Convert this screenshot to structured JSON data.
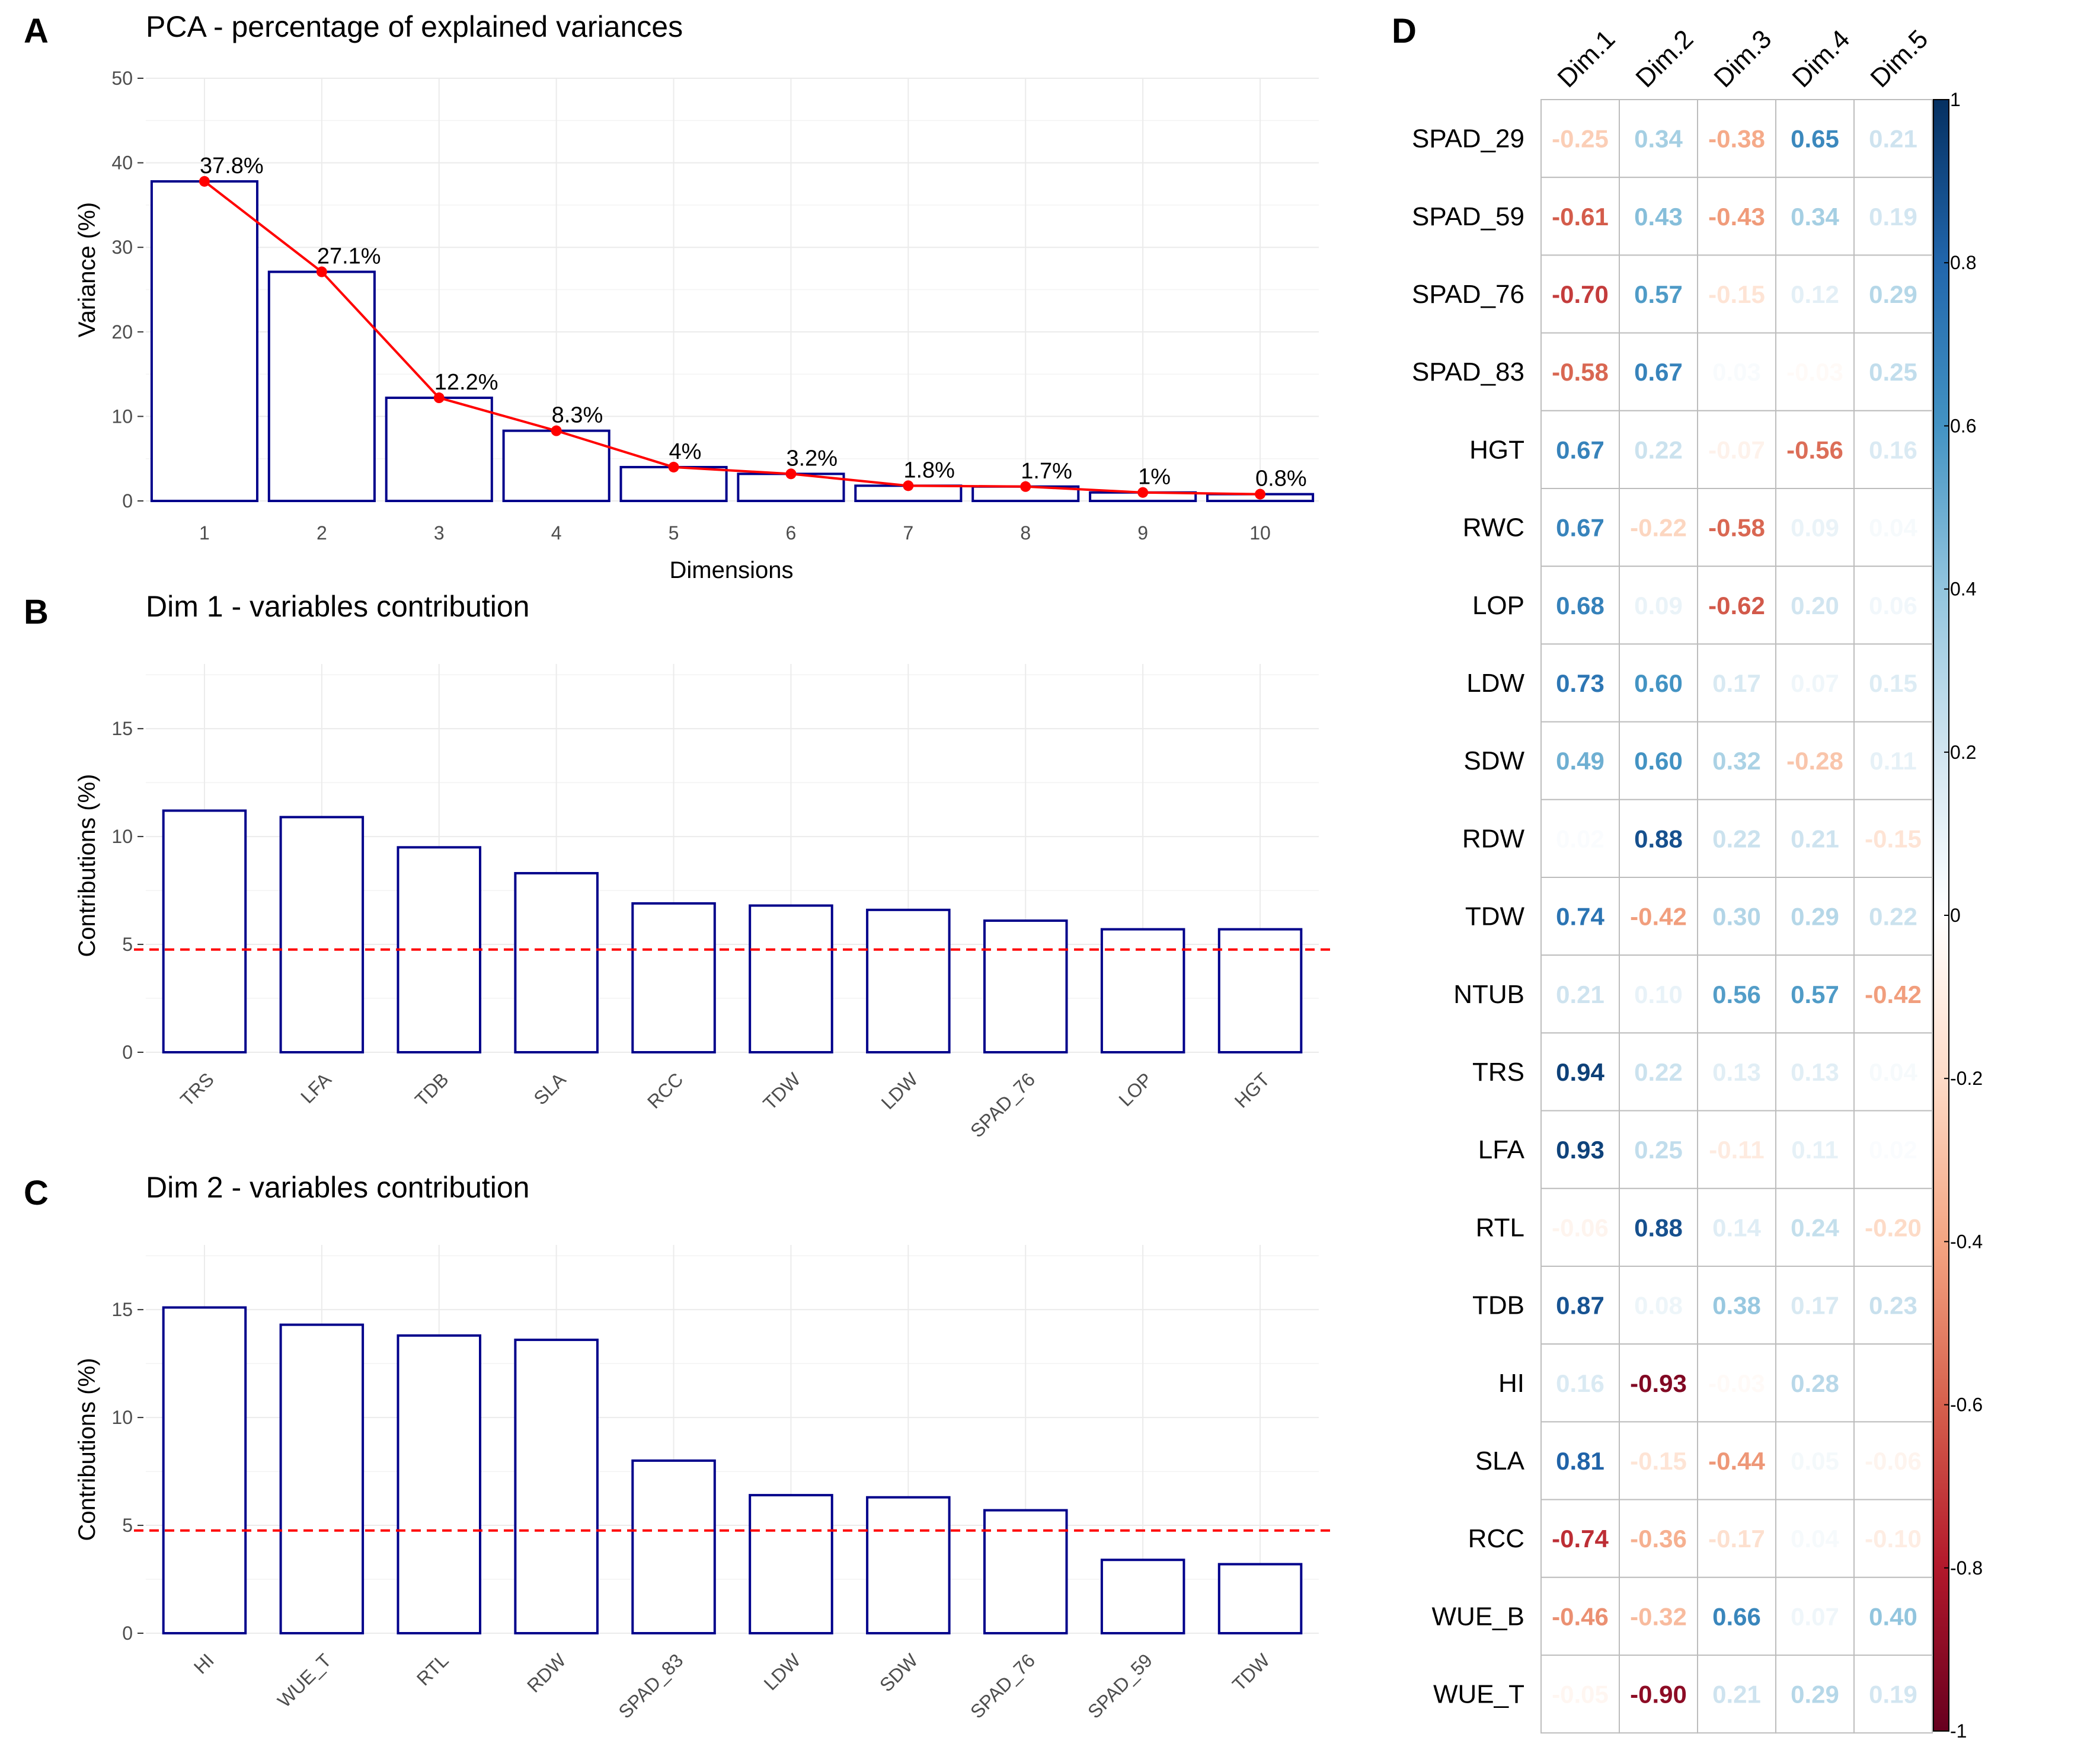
{
  "panels": {
    "A": {
      "letter": "A",
      "title": "PCA - percentage of explained variances",
      "xlabel": "Dimensions",
      "ylabel": "Variance (%)"
    },
    "B": {
      "letter": "B",
      "title": "Dim 1 - variables contribution",
      "ylabel": "Contributions (%)"
    },
    "C": {
      "letter": "C",
      "title": "Dim 2 - variables contribution",
      "ylabel": "Contributions (%)"
    },
    "D": {
      "letter": "D"
    }
  },
  "colors": {
    "bar_stroke": "#00008b",
    "line": "#ff0000",
    "refline": "#ff0000",
    "positive": "#053061",
    "negative": "#67001f"
  },
  "chart_data": [
    {
      "panel": "A",
      "type": "bar",
      "title": "PCA - percentage of explained variances",
      "xlabel": "Dimensions",
      "ylabel": "Variance (%)",
      "categories": [
        "1",
        "2",
        "3",
        "4",
        "5",
        "6",
        "7",
        "8",
        "9",
        "10"
      ],
      "values": [
        37.8,
        27.1,
        12.2,
        8.3,
        4.0,
        3.2,
        1.8,
        1.7,
        1.0,
        0.8
      ],
      "data_labels": [
        "37.8%",
        "27.1%",
        "12.2%",
        "8.3%",
        "4%",
        "3.2%",
        "1.8%",
        "1.7%",
        "1%",
        "0.8%"
      ],
      "line_overlay": true,
      "ylim": [
        0,
        50
      ],
      "yticks": [
        0,
        10,
        20,
        30,
        40,
        50
      ],
      "grid": true
    },
    {
      "panel": "B",
      "type": "bar",
      "title": "Dim 1 - variables contribution",
      "ylabel": "Contributions (%)",
      "categories": [
        "TRS",
        "LFA",
        "TDB",
        "SLA",
        "RCC",
        "TDW",
        "LDW",
        "SPAD_76",
        "LOP",
        "HGT"
      ],
      "values": [
        11.2,
        10.9,
        9.5,
        8.3,
        6.9,
        6.8,
        6.6,
        6.1,
        5.7,
        5.7
      ],
      "reference_line": 4.76,
      "ylim": [
        0,
        18
      ],
      "yticks": [
        0,
        5,
        10,
        15
      ],
      "grid": true
    },
    {
      "panel": "C",
      "type": "bar",
      "title": "Dim 2 - variables contribution",
      "ylabel": "Contributions (%)",
      "categories": [
        "HI",
        "WUE_T",
        "RTL",
        "RDW",
        "SPAD_83",
        "LDW",
        "SDW",
        "SPAD_76",
        "SPAD_59",
        "TDW"
      ],
      "values": [
        15.1,
        14.3,
        13.8,
        13.6,
        8.0,
        6.4,
        6.3,
        5.7,
        3.4,
        3.2
      ],
      "reference_line": 4.76,
      "ylim": [
        0,
        18
      ],
      "yticks": [
        0,
        5,
        10,
        15
      ],
      "grid": true
    },
    {
      "panel": "D",
      "type": "heatmap",
      "columns": [
        "Dim.1",
        "Dim.2",
        "Dim.3",
        "Dim.4",
        "Dim.5"
      ],
      "rows": [
        "SPAD_29",
        "SPAD_59",
        "SPAD_76",
        "SPAD_83",
        "HGT",
        "RWC",
        "LOP",
        "LDW",
        "SDW",
        "RDW",
        "TDW",
        "NTUB",
        "TRS",
        "LFA",
        "RTL",
        "TDB",
        "HI",
        "SLA",
        "RCC",
        "WUE_B",
        "WUE_T"
      ],
      "values": [
        [
          -0.25,
          0.34,
          -0.38,
          0.65,
          0.21
        ],
        [
          -0.61,
          0.43,
          -0.43,
          0.34,
          0.19
        ],
        [
          -0.7,
          0.57,
          -0.15,
          0.12,
          0.29
        ],
        [
          -0.58,
          0.67,
          0.03,
          -0.03,
          0.25
        ],
        [
          0.67,
          0.22,
          -0.07,
          -0.56,
          0.16
        ],
        [
          0.67,
          -0.22,
          -0.58,
          0.09,
          0.04
        ],
        [
          0.68,
          0.09,
          -0.62,
          0.2,
          0.06
        ],
        [
          0.73,
          0.6,
          0.17,
          0.07,
          0.15
        ],
        [
          0.49,
          0.6,
          0.32,
          -0.28,
          0.11
        ],
        [
          0.02,
          0.88,
          0.22,
          0.21,
          -0.15
        ],
        [
          0.74,
          -0.42,
          0.3,
          0.29,
          0.22
        ],
        [
          0.21,
          0.1,
          0.56,
          0.57,
          -0.42
        ],
        [
          0.94,
          0.22,
          0.13,
          0.13,
          0.04
        ],
        [
          0.93,
          0.25,
          -0.11,
          0.11,
          0.02
        ],
        [
          -0.06,
          0.88,
          0.14,
          0.24,
          -0.2
        ],
        [
          0.87,
          0.08,
          0.38,
          0.17,
          0.23
        ],
        [
          0.16,
          -0.93,
          -0.03,
          0.28,
          null
        ],
        [
          0.81,
          -0.15,
          -0.44,
          0.05,
          -0.06
        ],
        [
          -0.74,
          -0.36,
          -0.17,
          0.04,
          -0.1
        ],
        [
          -0.46,
          -0.32,
          0.66,
          0.07,
          0.4
        ],
        [
          -0.05,
          -0.9,
          0.21,
          0.29,
          0.19
        ]
      ],
      "value_labels": [
        [
          "-0.25",
          "0.34",
          "-0.38",
          "0.65",
          "0.21"
        ],
        [
          "-0.61",
          "0.43",
          "-0.43",
          "0.34",
          "0.19"
        ],
        [
          "-0.70",
          "0.57",
          "-0.15",
          "0.12",
          "0.29"
        ],
        [
          "-0.58",
          "0.67",
          "0.03",
          "-0.03",
          "0.25"
        ],
        [
          "0.67",
          "0.22",
          "-0.07",
          "-0.56",
          "0.16"
        ],
        [
          "0.67",
          "-0.22",
          "-0.58",
          "0.09",
          "0.04"
        ],
        [
          "0.68",
          "0.09",
          "-0.62",
          "0.20",
          "0.06"
        ],
        [
          "0.73",
          "0.60",
          "0.17",
          "0.07",
          "0.15"
        ],
        [
          "0.49",
          "0.60",
          "0.32",
          "-0.28",
          "0.11"
        ],
        [
          "0.02",
          "0.88",
          "0.22",
          "0.21",
          "-0.15"
        ],
        [
          "0.74",
          "-0.42",
          "0.30",
          "0.29",
          "0.22"
        ],
        [
          "0.21",
          "0.10",
          "0.56",
          "0.57",
          "-0.42"
        ],
        [
          "0.94",
          "0.22",
          "0.13",
          "0.13",
          "0.04"
        ],
        [
          "0.93",
          "0.25",
          "-0.11",
          "0.11",
          "0.02"
        ],
        [
          "-0.06",
          "0.88",
          "0.14",
          "0.24",
          "-0.20"
        ],
        [
          "0.87",
          "0.08",
          "0.38",
          "0.17",
          "0.23"
        ],
        [
          "0.16",
          "-0.93",
          "-0.03",
          "0.28",
          ""
        ],
        [
          "0.81",
          "-0.15",
          "-0.44",
          "0.05",
          "-0.06"
        ],
        [
          "-0.74",
          "-0.36",
          "-0.17",
          "0.04",
          "-0.10"
        ],
        [
          "-0.46",
          "-0.32",
          "0.66",
          "0.07",
          "0.40"
        ],
        [
          "-0.05",
          "-0.90",
          "0.21",
          "0.29",
          "0.19"
        ]
      ],
      "colorbar": {
        "range": [
          -1,
          1
        ],
        "ticks": [
          "1",
          "0.8",
          "0.6",
          "0.4",
          "0.2",
          "0",
          "-0.2",
          "-0.4",
          "-0.6",
          "-0.8",
          "-1"
        ],
        "palette": "RdBu"
      }
    }
  ]
}
